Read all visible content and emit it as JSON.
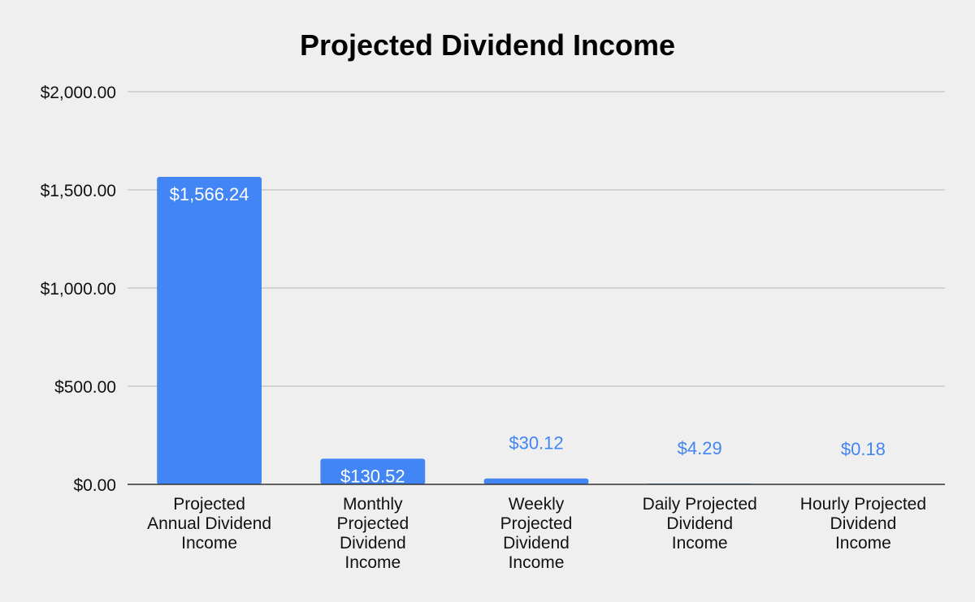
{
  "chart_data": {
    "type": "bar",
    "title": "Projected Dividend Income",
    "xlabel": "",
    "ylabel": "",
    "categories": [
      [
        "Projected",
        "Annual Dividend",
        "Income"
      ],
      [
        "Monthly",
        "Projected",
        "Dividend",
        "Income"
      ],
      [
        "Weekly",
        "Projected",
        "Dividend",
        "Income"
      ],
      [
        "Daily Projected",
        "Dividend",
        "Income"
      ],
      [
        "Hourly Projected",
        "Dividend",
        "Income"
      ]
    ],
    "values": [
      1566.24,
      130.52,
      30.12,
      4.29,
      0.18
    ],
    "data_labels": [
      "$1,566.24",
      "$130.52",
      "$30.12",
      "$4.29",
      "$0.18"
    ],
    "ylim": [
      0,
      2000
    ],
    "yticks": [
      0,
      500,
      1000,
      1500,
      2000
    ],
    "ytick_labels": [
      "$0.00",
      "$500.00",
      "$1,000.00",
      "$1,500.00",
      "$2,000.00"
    ],
    "grid": true,
    "legend": "none",
    "colors": {
      "bar": "#4285f4",
      "label_inside": "#ffffff",
      "label_outside": "#4285f4",
      "gridline": "#b7b7b7",
      "axis": "#333333",
      "background": "#efefef"
    }
  }
}
